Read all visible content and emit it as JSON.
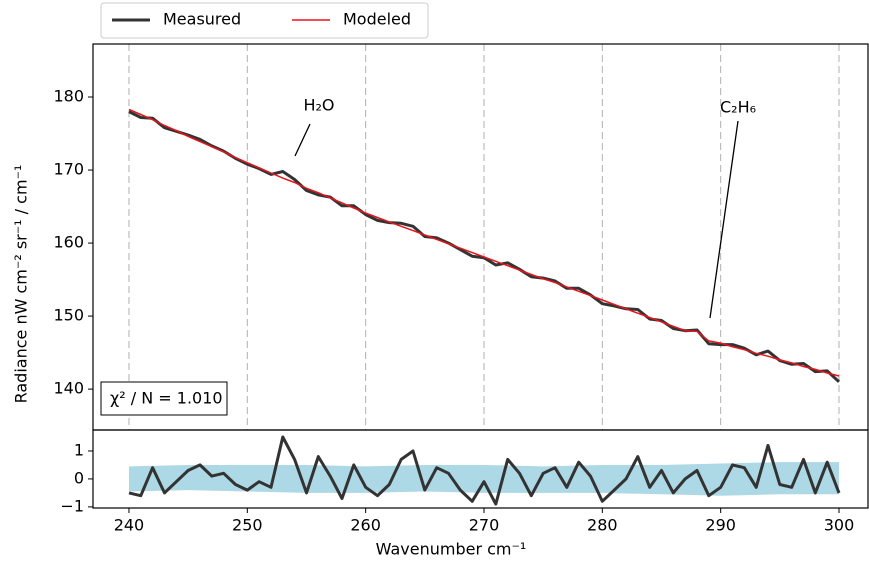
{
  "chart_data": [
    {
      "type": "line",
      "ylabel": "Radiance nW cm⁻² sr⁻¹ / cm⁻¹",
      "x": [
        240,
        241,
        242,
        243,
        244,
        245,
        246,
        247,
        248,
        249,
        250,
        251,
        252,
        253,
        254,
        255,
        256,
        257,
        258,
        259,
        260,
        261,
        262,
        263,
        264,
        265,
        266,
        267,
        268,
        269,
        270,
        271,
        272,
        273,
        274,
        275,
        276,
        277,
        278,
        279,
        280,
        281,
        282,
        283,
        284,
        285,
        286,
        287,
        288,
        289,
        290,
        291,
        292,
        293,
        294,
        295,
        296,
        297,
        298,
        299,
        300
      ],
      "series": [
        {
          "name": "Measured",
          "color": "#333333",
          "width": 3,
          "values": [
            178.0,
            177.2,
            177.1,
            175.8,
            175.3,
            174.8,
            174.2,
            173.3,
            172.6,
            171.6,
            170.8,
            170.2,
            169.4,
            169.8,
            168.7,
            167.2,
            166.6,
            166.3,
            165.1,
            165.1,
            163.9,
            163.1,
            162.8,
            162.7,
            162.3,
            160.9,
            160.7,
            160.0,
            159.1,
            158.2,
            158.0,
            157.0,
            157.3,
            156.4,
            155.4,
            155.2,
            154.8,
            153.8,
            153.8,
            152.9,
            151.7,
            151.4,
            151.0,
            150.9,
            149.6,
            149.4,
            148.3,
            148.0,
            148.1,
            146.2,
            146.1,
            146.1,
            145.6,
            144.7,
            145.2,
            143.9,
            143.4,
            143.5,
            142.4,
            142.5,
            141.0
          ]
        },
        {
          "name": "Modeled",
          "color": "#e8141b",
          "width": 1.5,
          "values": [
            178.3,
            177.6,
            176.9,
            176.1,
            175.4,
            174.6,
            173.9,
            173.2,
            172.5,
            171.7,
            171.0,
            170.3,
            169.6,
            168.9,
            168.3,
            167.5,
            166.9,
            166.2,
            165.5,
            164.8,
            164.1,
            163.5,
            162.9,
            162.3,
            161.7,
            161.1,
            160.5,
            159.9,
            159.3,
            158.7,
            158.1,
            157.5,
            156.9,
            156.3,
            155.7,
            155.1,
            154.6,
            154.0,
            153.4,
            152.8,
            152.2,
            151.6,
            151.0,
            150.4,
            149.8,
            149.2,
            148.6,
            148.0,
            147.9,
            146.6,
            146.3,
            145.8,
            145.4,
            144.9,
            144.5,
            144.0,
            143.6,
            143.1,
            142.7,
            142.2,
            141.8
          ]
        }
      ],
      "xlim": [
        236.96,
        302.45
      ],
      "ylim": [
        134.4,
        187.26
      ],
      "xticks": [
        240,
        250,
        260,
        270,
        280,
        290,
        300
      ],
      "yticks": [
        140,
        150,
        160,
        170,
        180
      ],
      "grid": true,
      "annotations": [
        {
          "text": "H₂O"
        },
        {
          "text": "C₂H₆"
        }
      ],
      "fit_label": "χ² / N = 1.010"
    },
    {
      "type": "line",
      "xlabel": "Wavenumber cm⁻¹",
      "x": [
        240,
        241,
        242,
        243,
        244,
        245,
        246,
        247,
        248,
        249,
        250,
        251,
        252,
        253,
        254,
        255,
        256,
        257,
        258,
        259,
        260,
        261,
        262,
        263,
        264,
        265,
        266,
        267,
        268,
        269,
        270,
        271,
        272,
        273,
        274,
        275,
        276,
        277,
        278,
        279,
        280,
        281,
        282,
        283,
        284,
        285,
        286,
        287,
        288,
        289,
        290,
        291,
        292,
        293,
        294,
        295,
        296,
        297,
        298,
        299,
        300
      ],
      "series": [
        {
          "color": "#333333",
          "width": 3,
          "values": [
            -0.5,
            -0.6,
            0.4,
            -0.5,
            -0.1,
            0.3,
            0.5,
            0.1,
            0.2,
            -0.2,
            -0.4,
            -0.1,
            -0.3,
            1.5,
            0.7,
            -0.5,
            0.8,
            0.1,
            -0.7,
            0.5,
            -0.3,
            -0.6,
            -0.2,
            0.7,
            1.0,
            -0.4,
            0.4,
            0.2,
            -0.4,
            -0.8,
            -0.1,
            -0.9,
            0.7,
            0.2,
            -0.6,
            0.2,
            0.4,
            -0.3,
            0.6,
            0.1,
            -0.8,
            -0.4,
            0.0,
            0.8,
            -0.3,
            0.3,
            -0.5,
            0.0,
            0.3,
            -0.6,
            -0.3,
            0.5,
            0.4,
            -0.3,
            1.2,
            -0.2,
            -0.3,
            0.7,
            -0.5,
            0.6,
            -0.5
          ]
        }
      ],
      "band": {
        "color": "#add8e6",
        "x": [
          240,
          245,
          250,
          255,
          260,
          265,
          270,
          275,
          280,
          285,
          290,
          295,
          300
        ],
        "lower": [
          -0.45,
          -0.4,
          -0.45,
          -0.5,
          -0.5,
          -0.45,
          -0.5,
          -0.5,
          -0.5,
          -0.55,
          -0.6,
          -0.55,
          -0.55
        ],
        "upper": [
          0.45,
          0.5,
          0.5,
          0.5,
          0.45,
          0.5,
          0.5,
          0.45,
          0.5,
          0.5,
          0.55,
          0.6,
          0.6
        ]
      },
      "xlim": [
        236.96,
        302.45
      ],
      "ylim": [
        -1.04,
        1.75
      ],
      "xticks": [
        240,
        250,
        260,
        270,
        280,
        290,
        300
      ],
      "yticks": [
        {
          "value": -1,
          "label": "−1"
        },
        0,
        1
      ]
    }
  ]
}
